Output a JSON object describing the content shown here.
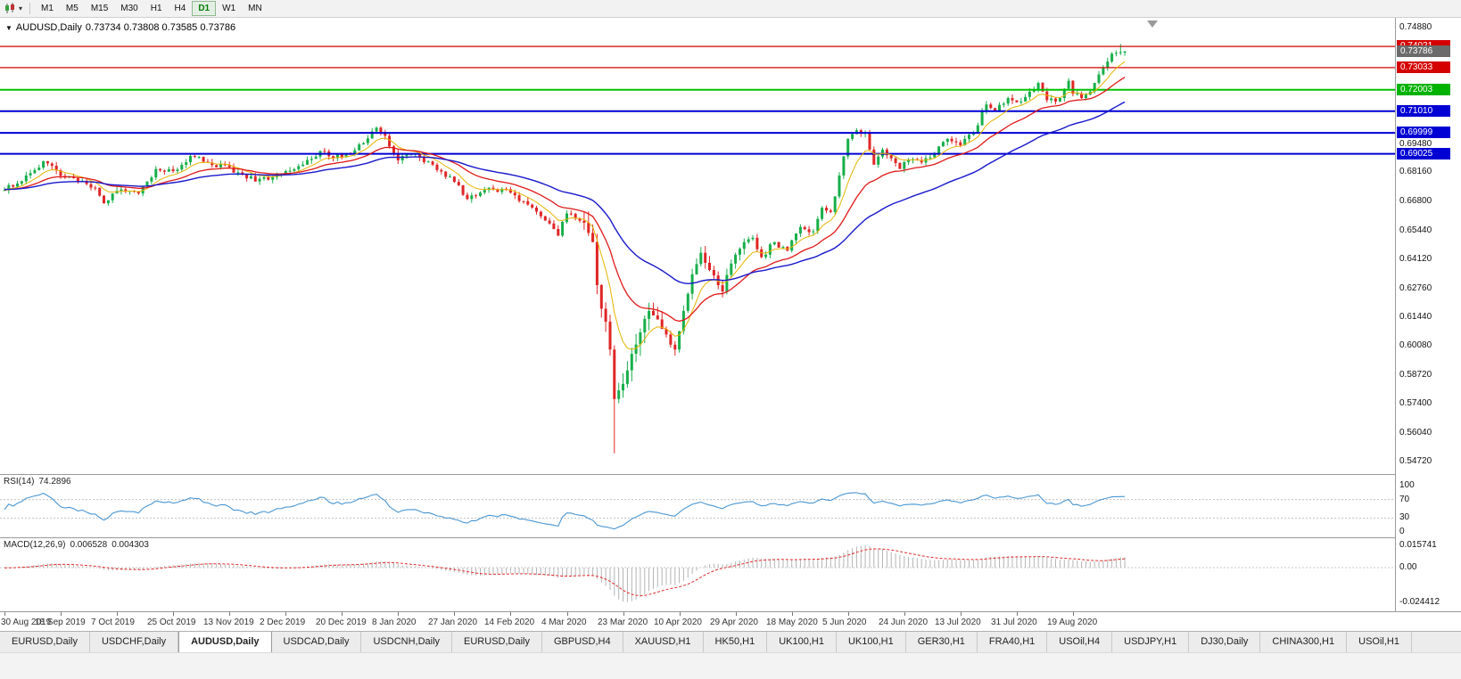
{
  "icons": {
    "caret": "▾",
    "expand": "▼"
  },
  "toolbar": {
    "timeframes": [
      "M1",
      "M5",
      "M15",
      "M30",
      "H1",
      "H4",
      "D1",
      "W1",
      "MN"
    ],
    "active_timeframe": "D1"
  },
  "chart": {
    "symbol_title": "AUDUSD,Daily",
    "ohlc_text": "0.73734 0.73808 0.73585 0.73786",
    "colors": {
      "up": "#17af4a",
      "down": "#e02525",
      "ma_fast": "#e6b400",
      "ma_mid": "#e01818",
      "ma_slow": "#1717cc"
    },
    "y_axis_labels": [
      "0.74880",
      "0.69480",
      "0.68160",
      "0.66800",
      "0.65440",
      "0.64120",
      "0.62760",
      "0.61440",
      "0.60080",
      "0.58720",
      "0.57400",
      "0.56040",
      "0.54720"
    ],
    "price_badges": [
      {
        "text": "0.74021",
        "price": 0.74021,
        "color": "#d40000"
      },
      {
        "text": "0.73786",
        "price": 0.73786,
        "color": "#6b6b6b"
      },
      {
        "text": "0.73033",
        "price": 0.73033,
        "color": "#d40000"
      },
      {
        "text": "0.72003",
        "price": 0.72003,
        "color": "#00b200"
      },
      {
        "text": "0.71010",
        "price": 0.7101,
        "color": "#0000d4"
      },
      {
        "text": "0.69999",
        "price": 0.69999,
        "color": "#0000d4"
      },
      {
        "text": "0.69025",
        "price": 0.69025,
        "color": "#0000d4"
      }
    ],
    "hlines": [
      {
        "price": 0.74021,
        "color": "#d40000",
        "width": 1.2
      },
      {
        "price": 0.73033,
        "color": "#d40000",
        "width": 1.2
      },
      {
        "price": 0.72003,
        "color": "#00c400",
        "width": 2
      },
      {
        "price": 0.7101,
        "color": "#0000d4",
        "width": 2
      },
      {
        "price": 0.69999,
        "color": "#0000d4",
        "width": 2
      },
      {
        "price": 0.69025,
        "color": "#0000d4",
        "width": 2
      }
    ],
    "x_axis_labels": [
      "30 Aug 2019",
      "18 Sep 2019",
      "7 Oct 2019",
      "25 Oct 2019",
      "13 Nov 2019",
      "2 Dec 2019",
      "20 Dec 2019",
      "8 Jan 2020",
      "27 Jan 2020",
      "14 Feb 2020",
      "4 Mar 2020",
      "23 Mar 2020",
      "10 Apr 2020",
      "29 Apr 2020",
      "18 May 2020",
      "5 Jun 2020",
      "24 Jun 2020",
      "13 Jul 2020",
      "31 Jul 2020",
      "19 Aug 2020"
    ]
  },
  "chart_data": {
    "type": "candlestick",
    "symbol": "AUDUSD",
    "period": "Daily",
    "candles_count": 260,
    "price_path_anchors": [
      [
        0,
        0.6734
      ],
      [
        4,
        0.6775
      ],
      [
        9,
        0.6868
      ],
      [
        13,
        0.68
      ],
      [
        17,
        0.6772
      ],
      [
        21,
        0.6745
      ],
      [
        23,
        0.6672
      ],
      [
        26,
        0.673
      ],
      [
        31,
        0.6718
      ],
      [
        35,
        0.6832
      ],
      [
        39,
        0.6822
      ],
      [
        43,
        0.6892
      ],
      [
        47,
        0.6862
      ],
      [
        52,
        0.684
      ],
      [
        56,
        0.6788
      ],
      [
        61,
        0.6782
      ],
      [
        65,
        0.6822
      ],
      [
        69,
        0.6852
      ],
      [
        73,
        0.6916
      ],
      [
        76,
        0.6882
      ],
      [
        79,
        0.6902
      ],
      [
        83,
        0.6952
      ],
      [
        86,
        0.7024
      ],
      [
        88,
        0.6986
      ],
      [
        91,
        0.6872
      ],
      [
        95,
        0.6902
      ],
      [
        99,
        0.6852
      ],
      [
        104,
        0.6772
      ],
      [
        107,
        0.6692
      ],
      [
        110,
        0.6722
      ],
      [
        113,
        0.6738
      ],
      [
        117,
        0.6722
      ],
      [
        120,
        0.6682
      ],
      [
        124,
        0.6612
      ],
      [
        128,
        0.6522
      ],
      [
        130,
        0.6625
      ],
      [
        132,
        0.6602
      ],
      [
        134,
        0.6582
      ],
      [
        136,
        0.6492
      ],
      [
        137,
        0.6292
      ],
      [
        138,
        0.6182
      ],
      [
        139,
        0.6122
      ],
      [
        140,
        0.5992
      ],
      [
        141,
        0.5762
      ],
      [
        142,
        0.5802
      ],
      [
        143,
        0.5832
      ],
      [
        145,
        0.5972
      ],
      [
        147,
        0.6072
      ],
      [
        149,
        0.6172
      ],
      [
        151,
        0.6132
      ],
      [
        153,
        0.6062
      ],
      [
        155,
        0.5992
      ],
      [
        157,
        0.6172
      ],
      [
        159,
        0.6342
      ],
      [
        161,
        0.6442
      ],
      [
        163,
        0.6362
      ],
      [
        166,
        0.6262
      ],
      [
        168,
        0.6392
      ],
      [
        171,
        0.6492
      ],
      [
        173,
        0.6512
      ],
      [
        175,
        0.6422
      ],
      [
        178,
        0.6492
      ],
      [
        181,
        0.6452
      ],
      [
        184,
        0.6562
      ],
      [
        187,
        0.6542
      ],
      [
        189,
        0.6652
      ],
      [
        191,
        0.6632
      ],
      [
        193,
        0.6802
      ],
      [
        195,
        0.6972
      ],
      [
        197,
        0.7012
      ],
      [
        199,
        0.7002
      ],
      [
        201,
        0.6852
      ],
      [
        203,
        0.6922
      ],
      [
        205,
        0.6882
      ],
      [
        207,
        0.6832
      ],
      [
        209,
        0.6872
      ],
      [
        212,
        0.6862
      ],
      [
        215,
        0.6902
      ],
      [
        218,
        0.6972
      ],
      [
        221,
        0.6942
      ],
      [
        224,
        0.7002
      ],
      [
        227,
        0.7132
      ],
      [
        229,
        0.7102
      ],
      [
        232,
        0.7162
      ],
      [
        234,
        0.7142
      ],
      [
        237,
        0.7192
      ],
      [
        239,
        0.7232
      ],
      [
        241,
        0.7152
      ],
      [
        244,
        0.7162
      ],
      [
        246,
        0.7242
      ],
      [
        247,
        0.7182
      ],
      [
        249,
        0.7162
      ],
      [
        251,
        0.7192
      ],
      [
        253,
        0.7272
      ],
      [
        255,
        0.7332
      ],
      [
        256,
        0.7368
      ],
      [
        257,
        0.7372
      ],
      [
        258,
        0.7376
      ],
      [
        259,
        0.73786
      ]
    ],
    "special_wicks": [
      {
        "index": 141,
        "low": 0.551
      },
      {
        "index": 258,
        "high": 0.74135
      }
    ],
    "last_candle": {
      "open": 0.73734,
      "high": 0.73808,
      "low": 0.73585,
      "close": 0.73786
    },
    "noise": 0.0026,
    "wick_base": 0.0018,
    "moving_averages": [
      {
        "period": 8,
        "color_key": "ma_fast",
        "width": 1
      },
      {
        "period": 20,
        "color_key": "ma_mid",
        "width": 1.3
      },
      {
        "period": 45,
        "color_key": "ma_slow",
        "width": 1.4
      }
    ]
  },
  "rsi": {
    "name": "RSI(14)",
    "value": "74.2896",
    "period": 14,
    "axis_labels": [
      "100",
      "70",
      "30",
      "0"
    ],
    "levels": [
      70,
      30
    ],
    "line_color": "#4a96d2"
  },
  "macd": {
    "name": "MACD(12,26,9)",
    "value_main": "0.006528",
    "value_signal": "0.004303",
    "fast": 12,
    "slow": 26,
    "signal": 9,
    "axis_labels": [
      "0.015741",
      "0.00",
      "-0.024412"
    ],
    "max": 0.015741,
    "min": -0.024412,
    "hist_color": "#b4b4b4",
    "signal_color": "#e02828"
  },
  "tabs": {
    "items": [
      "EURUSD,Daily",
      "USDCHF,Daily",
      "AUDUSD,Daily",
      "USDCAD,Daily",
      "USDCNH,Daily",
      "EURUSD,Daily",
      "GBPUSD,H4",
      "XAUUSD,H1",
      "HK50,H1",
      "UK100,H1",
      "UK100,H1",
      "GER30,H1",
      "FRA40,H1",
      "USOil,H4",
      "USDJPY,H1",
      "DJ30,Daily",
      "CHINA300,H1",
      "USOil,H1"
    ],
    "active_index": 2
  }
}
